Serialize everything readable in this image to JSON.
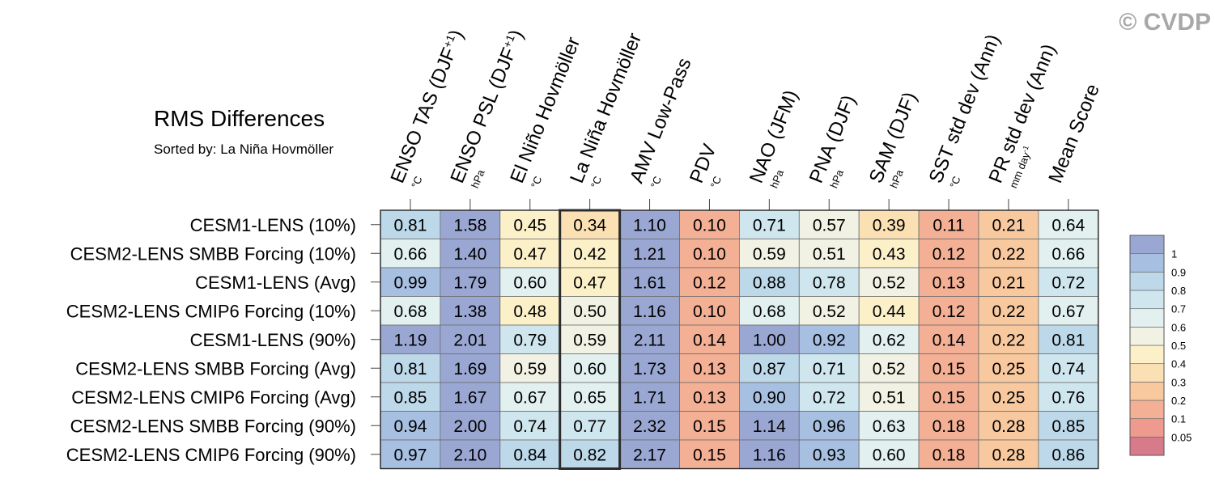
{
  "title": "RMS Differences",
  "subtitle": "Sorted by: La Niña Hovmöller",
  "watermark": "© CVDP",
  "chart_data": {
    "type": "heatmap",
    "title": "RMS Differences",
    "subtitle": "Sorted by: La Niña Hovmöller",
    "columns": [
      {
        "label": "ENSO TAS (DJF",
        "sup": "+1",
        "suffix": ")",
        "unit": "°C"
      },
      {
        "label": "ENSO PSL (DJF",
        "sup": "+1",
        "suffix": ")",
        "unit": "hPa"
      },
      {
        "label": "El Niño Hovmöller",
        "sup": "",
        "suffix": "",
        "unit": "°C"
      },
      {
        "label": "La Niña Hovmöller",
        "sup": "",
        "suffix": "",
        "unit": "°C"
      },
      {
        "label": "AMV Low-Pass",
        "sup": "",
        "suffix": "",
        "unit": "°C"
      },
      {
        "label": "PDV",
        "sup": "",
        "suffix": "",
        "unit": "°C"
      },
      {
        "label": "NAO (JFM)",
        "sup": "",
        "suffix": "",
        "unit": "hPa"
      },
      {
        "label": "PNA (DJF)",
        "sup": "",
        "suffix": "",
        "unit": "hPa"
      },
      {
        "label": "SAM (DJF)",
        "sup": "",
        "suffix": "",
        "unit": "hPa"
      },
      {
        "label": "SST std dev (Ann)",
        "sup": "",
        "suffix": "",
        "unit": "°C"
      },
      {
        "label": "PR std dev (Ann)",
        "sup": "",
        "suffix": "",
        "unit": "mm day",
        "unit_sup": "-1"
      },
      {
        "label": "Mean Score",
        "sup": "",
        "suffix": "",
        "unit": ""
      }
    ],
    "rows": [
      "CESM1-LENS (10%)",
      "CESM2-LENS SMBB Forcing (10%)",
      "CESM1-LENS (Avg)",
      "CESM2-LENS CMIP6 Forcing (10%)",
      "CESM1-LENS (90%)",
      "CESM2-LENS SMBB Forcing (Avg)",
      "CESM2-LENS CMIP6 Forcing (Avg)",
      "CESM2-LENS SMBB Forcing (90%)",
      "CESM2-LENS CMIP6 Forcing (90%)"
    ],
    "values": [
      [
        0.81,
        1.58,
        0.45,
        0.34,
        1.1,
        0.1,
        0.71,
        0.57,
        0.39,
        0.11,
        0.21,
        0.64
      ],
      [
        0.66,
        1.4,
        0.47,
        0.42,
        1.21,
        0.1,
        0.59,
        0.51,
        0.43,
        0.12,
        0.22,
        0.66
      ],
      [
        0.99,
        1.79,
        0.6,
        0.47,
        1.61,
        0.12,
        0.88,
        0.78,
        0.52,
        0.13,
        0.21,
        0.72
      ],
      [
        0.68,
        1.38,
        0.48,
        0.5,
        1.16,
        0.1,
        0.68,
        0.52,
        0.44,
        0.12,
        0.22,
        0.67
      ],
      [
        1.19,
        2.01,
        0.79,
        0.59,
        2.11,
        0.14,
        1.0,
        0.92,
        0.62,
        0.14,
        0.22,
        0.81
      ],
      [
        0.81,
        1.69,
        0.59,
        0.6,
        1.73,
        0.13,
        0.87,
        0.71,
        0.52,
        0.15,
        0.25,
        0.74
      ],
      [
        0.85,
        1.67,
        0.67,
        0.65,
        1.71,
        0.13,
        0.9,
        0.72,
        0.51,
        0.15,
        0.25,
        0.76
      ],
      [
        0.94,
        2.0,
        0.74,
        0.77,
        2.32,
        0.15,
        1.14,
        0.96,
        0.63,
        0.18,
        0.28,
        0.85
      ],
      [
        0.97,
        2.1,
        0.84,
        0.82,
        2.17,
        0.15,
        1.16,
        0.93,
        0.6,
        0.18,
        0.28,
        0.86
      ]
    ],
    "highlighted_column": "La Niña Hovmöller",
    "value_format": "2 decimals",
    "legend": {
      "placement": "right",
      "levels": [
        0.05,
        0.1,
        0.2,
        0.3,
        0.4,
        0.5,
        0.6,
        0.7,
        0.8,
        0.9,
        1
      ],
      "labels": [
        "0.05",
        "0.1",
        "0.2",
        "0.3",
        "0.4",
        "0.5",
        "0.6",
        "0.7",
        "0.8",
        "0.9",
        "1"
      ],
      "colors": [
        "#d77b8b",
        "#ee9a8f",
        "#f3b095",
        "#f8c99f",
        "#fbe0b3",
        "#fcf0c9",
        "#f1f1e4",
        "#e2f0f0",
        "#cfe6ee",
        "#bcd8e9",
        "#a7bfe0",
        "#9aa7d3"
      ]
    }
  }
}
